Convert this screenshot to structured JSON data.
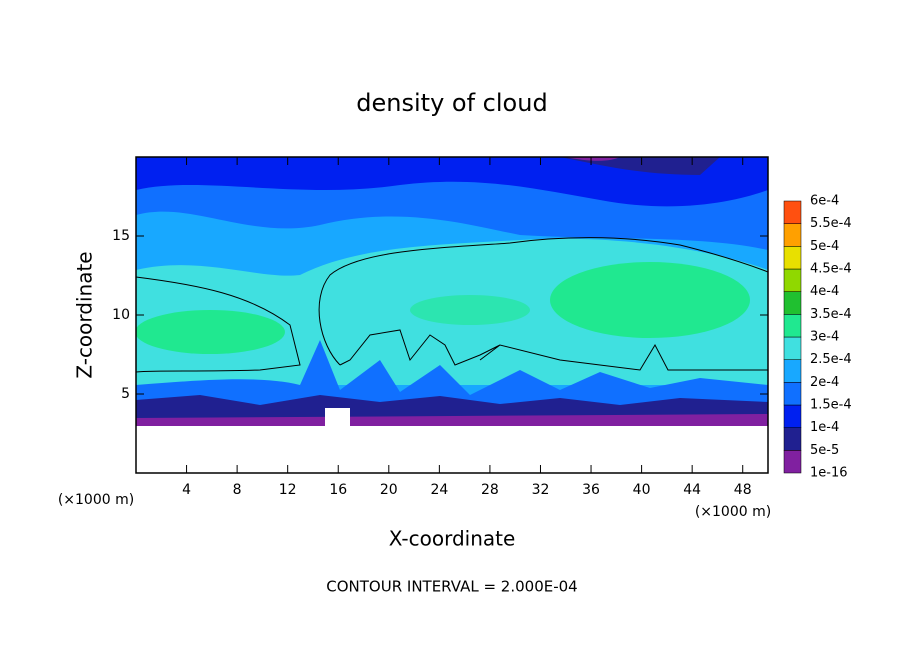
{
  "chart_data": {
    "type": "contour",
    "title": "density of cloud",
    "x_label": "X-coordinate",
    "y_label": "Z-coordinate",
    "x_unit": "(×1000 m)",
    "y_unit": "(×1000 m)",
    "footer": "CONTOUR INTERVAL = 2.000E-04",
    "xlim": [
      0,
      50
    ],
    "xticks": [
      4,
      8,
      12,
      16,
      20,
      24,
      28,
      32,
      36,
      40,
      44,
      48
    ],
    "ylim": [
      0,
      20
    ],
    "yticks": [
      5,
      10,
      15
    ],
    "grid": false,
    "colorbar": {
      "ticks": [
        {
          "value": 1e-16,
          "label": "1e-16"
        },
        {
          "value": 5e-05,
          "label": "5e-5"
        },
        {
          "value": 0.0001,
          "label": "1e-4"
        },
        {
          "value": 0.00015,
          "label": "1.5e-4"
        },
        {
          "value": 0.0002,
          "label": "2e-4"
        },
        {
          "value": 0.00025,
          "label": "2.5e-4"
        },
        {
          "value": 0.0003,
          "label": "3e-4"
        },
        {
          "value": 0.00035,
          "label": "3.5e-4"
        },
        {
          "value": 0.0004,
          "label": "4e-4"
        },
        {
          "value": 0.00045,
          "label": "4.5e-4"
        },
        {
          "value": 0.0005,
          "label": "5e-4"
        },
        {
          "value": 0.00055,
          "label": "5.5e-4"
        },
        {
          "value": 0.0006,
          "label": "6e-4"
        }
      ],
      "colors": [
        "#8020a0",
        "#202090",
        "#0020f0",
        "#1070ff",
        "#18a8ff",
        "#40e0e0",
        "#20e890",
        "#20c030",
        "#90d800",
        "#e8e000",
        "#ffa000",
        "#ff5010"
      ]
    }
  }
}
